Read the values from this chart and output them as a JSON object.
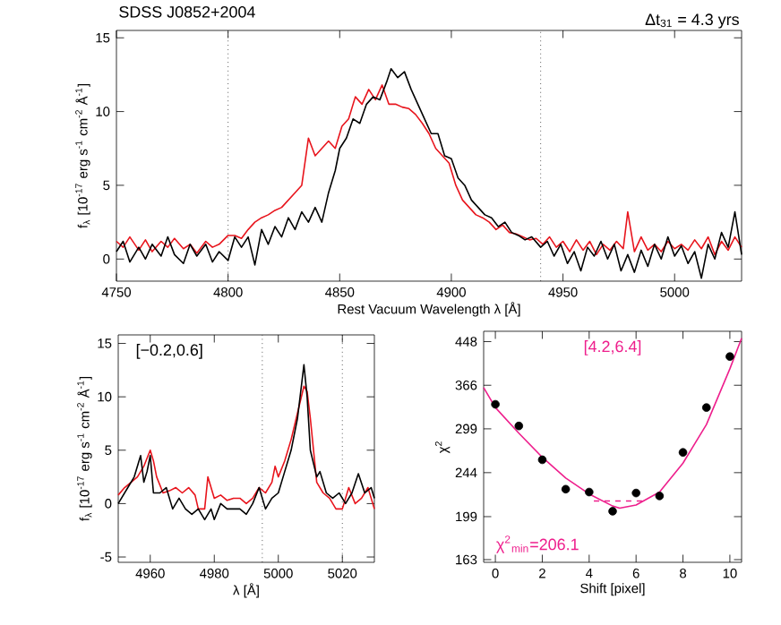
{
  "chart_data": [
    {
      "type": "line",
      "title": "SDSS J0852+2004",
      "xlabel": "Rest Vacuum Wavelength λ [Å]",
      "ylabel": "f$_{λ}$ [10$^{-17}$ erg s$^{-1}$ cm$^{-2}$ Å$^{-1}$]",
      "annotations": [
        "Δt$_{31}$ = 4.3 yrs"
      ],
      "xlim": [
        4750,
        5030
      ],
      "ylim": [
        -1.5,
        15.5
      ],
      "xticks": [
        4750,
        4800,
        4850,
        4900,
        4950,
        5000
      ],
      "yticks": [
        0,
        5,
        10,
        15
      ],
      "ref_lines": [
        {
          "axis": "x",
          "value": 4800,
          "color": "#000000",
          "line_style": "dotted"
        },
        {
          "axis": "x",
          "value": 4940,
          "color": "#000000",
          "line_style": "dotted"
        }
      ],
      "series": [
        {
          "color": "#e8141c",
          "x": [
            4750,
            4753,
            4756,
            4760,
            4763,
            4766,
            4770,
            4773,
            4776,
            4780,
            4783,
            4786,
            4790,
            4793,
            4796,
            4800,
            4803,
            4806,
            4809,
            4812,
            4815,
            4818,
            4821,
            4824,
            4827,
            4830,
            4833,
            4836,
            4839,
            4842,
            4845,
            4848,
            4851,
            4854,
            4857,
            4860,
            4863,
            4866,
            4869,
            4872,
            4875,
            4878,
            4881,
            4884,
            4887,
            4890,
            4893,
            4896,
            4899,
            4902,
            4905,
            4908,
            4911,
            4914,
            4917,
            4920,
            4923,
            4926,
            4929,
            4932,
            4935,
            4938,
            4941,
            4944,
            4947,
            4950,
            4953,
            4956,
            4959,
            4962,
            4965,
            4968,
            4971,
            4974,
            4977,
            4979,
            4982,
            4985,
            4988,
            4991,
            4994,
            4997,
            5000,
            5003,
            5006,
            5009,
            5012,
            5015,
            5018,
            5021,
            5024,
            5027,
            5030
          ],
          "values": [
            1.2,
            0.8,
            1.5,
            0.6,
            1.3,
            0.5,
            1.2,
            0.8,
            1.4,
            0.7,
            1.0,
            0.4,
            1.2,
            0.8,
            1.0,
            1.6,
            1.6,
            1.4,
            2.0,
            2.5,
            2.8,
            3.0,
            3.3,
            3.5,
            4.0,
            4.5,
            5.0,
            8.2,
            7.0,
            7.5,
            8.0,
            7.5,
            9.0,
            9.5,
            11.0,
            10.5,
            11.5,
            10.8,
            11.8,
            10.5,
            10.5,
            10.3,
            10.2,
            9.8,
            9.2,
            8.5,
            7.5,
            7.0,
            6.5,
            5.0,
            4.0,
            3.5,
            3.0,
            2.8,
            2.5,
            2.0,
            2.3,
            1.8,
            1.7,
            1.5,
            1.3,
            1.4,
            1.0,
            1.5,
            0.8,
            1.2,
            0.5,
            1.3,
            0.6,
            1.2,
            0.3,
            1.0,
            0.6,
            1.2,
            0.7,
            3.2,
            0.5,
            1.5,
            0.6,
            1.0,
            0.5,
            1.2,
            0.7,
            1.0,
            0.6,
            1.3,
            0.7,
            1.5,
            0.3,
            1.2,
            0.6,
            1.5,
            0.8
          ]
        },
        {
          "color": "#000000",
          "x": [
            4750,
            4753,
            4756,
            4760,
            4763,
            4766,
            4770,
            4773,
            4776,
            4780,
            4783,
            4786,
            4790,
            4793,
            4796,
            4800,
            4803,
            4806,
            4809,
            4812,
            4815,
            4818,
            4821,
            4824,
            4827,
            4830,
            4833,
            4836,
            4839,
            4842,
            4845,
            4848,
            4850,
            4853,
            4856,
            4859,
            4862,
            4865,
            4868,
            4871,
            4873,
            4876,
            4879,
            4882,
            4885,
            4888,
            4891,
            4894,
            4897,
            4900,
            4903,
            4906,
            4909,
            4912,
            4915,
            4918,
            4921,
            4924,
            4927,
            4930,
            4933,
            4936,
            4940,
            4943,
            4946,
            4949,
            4952,
            4955,
            4958,
            4961,
            4964,
            4967,
            4970,
            4973,
            4976,
            4979,
            4982,
            4985,
            4988,
            4991,
            4994,
            4997,
            5000,
            5003,
            5006,
            5009,
            5012,
            5015,
            5018,
            5021,
            5024,
            5027,
            5030
          ],
          "values": [
            0.5,
            1.2,
            -0.2,
            0.8,
            0.0,
            1.0,
            0.2,
            1.5,
            0.3,
            -0.3,
            1.0,
            0.2,
            1.0,
            -0.2,
            0.5,
            -0.1,
            1.5,
            0.8,
            1.5,
            -0.4,
            2.0,
            1.0,
            2.2,
            1.5,
            2.8,
            2.0,
            3.2,
            2.5,
            3.5,
            2.5,
            4.5,
            6.0,
            7.5,
            8.2,
            9.5,
            9.2,
            10.5,
            11.0,
            10.8,
            12.0,
            12.9,
            12.3,
            12.7,
            11.5,
            10.5,
            9.5,
            8.5,
            8.5,
            7.0,
            6.8,
            5.5,
            5.0,
            4.0,
            3.5,
            3.0,
            2.8,
            2.2,
            2.5,
            1.8,
            1.6,
            1.3,
            1.5,
            0.8,
            1.2,
            0.2,
            1.0,
            -0.3,
            0.5,
            -0.8,
            0.8,
            0.2,
            1.2,
            0.0,
            1.0,
            -0.8,
            0.3,
            -0.9,
            0.6,
            -0.5,
            1.0,
            0.0,
            1.5,
            0.2,
            0.9,
            -0.3,
            0.5,
            -1.3,
            1.0,
            0.0,
            1.8,
            0.8,
            3.2,
            0.3
          ]
        }
      ]
    },
    {
      "type": "line",
      "xlabel": "λ [Å]",
      "ylabel": "f$_{λ}$ [10$^{-17}$ erg s$^{-1}$ cm$^{-2}$ Å$^{-1}$]",
      "annotations": [
        "[−0.2,0.6]"
      ],
      "xlim": [
        4950,
        5030
      ],
      "ylim": [
        -5.5,
        15.8
      ],
      "xticks": [
        4960,
        4980,
        5000,
        5020
      ],
      "yticks": [
        -5,
        0,
        5,
        10,
        15
      ],
      "ref_lines": [
        {
          "axis": "x",
          "value": 4995,
          "color": "#000000",
          "line_style": "dotted"
        },
        {
          "axis": "x",
          "value": 5020,
          "color": "#000000",
          "line_style": "dotted"
        }
      ],
      "series": [
        {
          "color": "#e8141c",
          "x": [
            4950,
            4952,
            4954,
            4956,
            4958,
            4960,
            4961,
            4962,
            4964,
            4966,
            4968,
            4970,
            4972,
            4974,
            4975,
            4977,
            4978,
            4979,
            4980,
            4982,
            4984,
            4986,
            4988,
            4990,
            4992,
            4994,
            4996,
            4998,
            4999,
            5000,
            5002,
            5004,
            5006,
            5008,
            5009,
            5010,
            5012,
            5014,
            5016,
            5018,
            5020,
            5022,
            5024,
            5026,
            5028,
            5030
          ],
          "values": [
            0.8,
            1.5,
            2.0,
            2.5,
            3.5,
            5.0,
            4.0,
            2.5,
            1.0,
            1.2,
            1.5,
            1.0,
            1.5,
            0.8,
            -0.5,
            -0.5,
            2.5,
            1.5,
            0.5,
            0.8,
            0.3,
            0.5,
            0.5,
            0.0,
            0.5,
            1.5,
            1.0,
            2.0,
            3.5,
            2.5,
            4.0,
            6.0,
            8.5,
            11.0,
            10.5,
            8.0,
            2.0,
            1.0,
            0.5,
            -0.5,
            -0.5,
            1.5,
            0.0,
            0.5,
            1.5,
            -0.5
          ]
        },
        {
          "color": "#000000",
          "x": [
            4950,
            4953,
            4955,
            4957,
            4958,
            4959,
            4960,
            4961,
            4963,
            4965,
            4967,
            4969,
            4971,
            4973,
            4975,
            4977,
            4979,
            4980,
            4982,
            4984,
            4986,
            4988,
            4990,
            4992,
            4994,
            4996,
            4998,
            5000,
            5002,
            5004,
            5006,
            5008,
            5009,
            5010,
            5012,
            5013,
            5015,
            5017,
            5019,
            5021,
            5023,
            5025,
            5027,
            5029,
            5030
          ],
          "values": [
            0.0,
            1.5,
            2.5,
            4.5,
            2.0,
            3.0,
            4.5,
            1.0,
            1.0,
            1.5,
            -0.5,
            0.5,
            -0.5,
            -1.0,
            -0.5,
            -1.5,
            -0.5,
            -1.5,
            0.0,
            -0.5,
            -0.5,
            -0.5,
            -1.0,
            0.0,
            1.5,
            -0.5,
            0.5,
            1.0,
            3.0,
            5.0,
            8.0,
            13.0,
            10.0,
            5.0,
            2.5,
            3.0,
            1.0,
            0.5,
            1.0,
            0.0,
            1.0,
            2.8,
            1.0,
            1.5,
            0.5
          ]
        }
      ]
    },
    {
      "type": "scatter",
      "xlabel": "Shift [pixel]",
      "ylabel": "χ$^{2}$",
      "log": "y",
      "annotations": [
        "[4.2,6.4]",
        "χ$^{2}$$_{min}$=206.1"
      ],
      "xlim": [
        -0.5,
        10.5
      ],
      "ylim": [
        161,
        470
      ],
      "xticks": [
        0,
        2,
        4,
        6,
        8,
        10
      ],
      "yticks": [
        163,
        199,
        244,
        299,
        366,
        448
      ],
      "series": [
        {
          "type": "line",
          "color": "#ee1e8c",
          "x": [
            -0.5,
            0,
            1,
            2,
            3,
            4,
            5,
            5.3,
            6,
            7,
            8,
            9,
            10,
            10.5
          ],
          "values": [
            362,
            330,
            293,
            262,
            238,
            221,
            209,
            207,
            210,
            223,
            255,
            305,
            395,
            455
          ]
        },
        {
          "type": "line",
          "color": "#ee1e8c",
          "line_style": "dashed",
          "x": [
            4.2,
            6.4
          ],
          "values": [
            214,
            214
          ]
        },
        {
          "color": "#000000",
          "marker": "circle",
          "x": [
            0,
            1,
            2,
            3,
            4,
            5,
            6,
            7,
            8,
            9,
            10
          ],
          "values": [
            335,
            303,
            259,
            226,
            223,
            204,
            222,
            219,
            268,
            330,
            418
          ]
        }
      ]
    }
  ]
}
